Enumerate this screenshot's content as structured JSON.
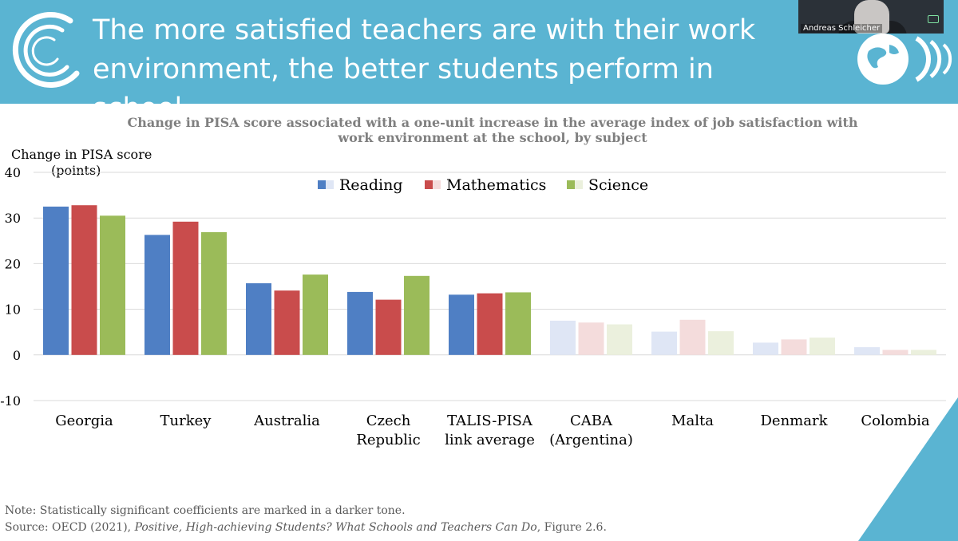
{
  "slide": {
    "title_line1": "The more satisfied teachers are with their work",
    "title_line2": "environment, the better students perform in school",
    "brand_color": "#5ab4d2"
  },
  "webcam": {
    "name": "Andreas Schleicher"
  },
  "footer": {
    "note": "Note: Statistically significant coefficients are marked in a darker tone.",
    "source_prefix": "Source: OECD (2021), ",
    "source_title": "Positive, High-achieving Students? What Schools and Teachers Can Do",
    "source_suffix": ", Figure 2.6."
  },
  "chart_data": {
    "type": "bar",
    "title_line1": "Change in PISA score associated with a one-unit increase in the average index of job satisfaction with",
    "title_line2": "work environment at the school, by subject",
    "ylabel_line1": "Change in PISA score",
    "ylabel_line2": "(points)",
    "ylim": [
      -10,
      40
    ],
    "yticks": [
      40,
      30,
      20,
      10,
      0,
      -10
    ],
    "grid": true,
    "legend_position": "top-center",
    "categories": [
      [
        "Georgia"
      ],
      [
        "Turkey"
      ],
      [
        "Australia"
      ],
      [
        "Czech",
        "Republic"
      ],
      [
        "TALIS-PISA",
        "link average"
      ],
      [
        "CABA",
        "(Argentina)"
      ],
      [
        "Malta"
      ],
      [
        "Denmark"
      ],
      [
        "Colombia"
      ]
    ],
    "significant": [
      true,
      true,
      true,
      true,
      true,
      false,
      false,
      false,
      false
    ],
    "series": [
      {
        "name": "Reading",
        "color": "#4f7fc4",
        "light_color": "#dfe6f5",
        "values": [
          32.5,
          26.3,
          15.7,
          13.8,
          13.2,
          7.5,
          5.1,
          2.7,
          1.7
        ]
      },
      {
        "name": "Mathematics",
        "color": "#c94c4c",
        "light_color": "#f4dcdc",
        "values": [
          32.8,
          29.2,
          14.1,
          12.1,
          13.5,
          7.1,
          7.7,
          3.4,
          1.1
        ]
      },
      {
        "name": "Science",
        "color": "#9bbb59",
        "light_color": "#ebf0dd",
        "values": [
          30.5,
          26.9,
          17.6,
          17.3,
          13.7,
          6.7,
          5.2,
          3.8,
          1.1
        ]
      }
    ]
  }
}
